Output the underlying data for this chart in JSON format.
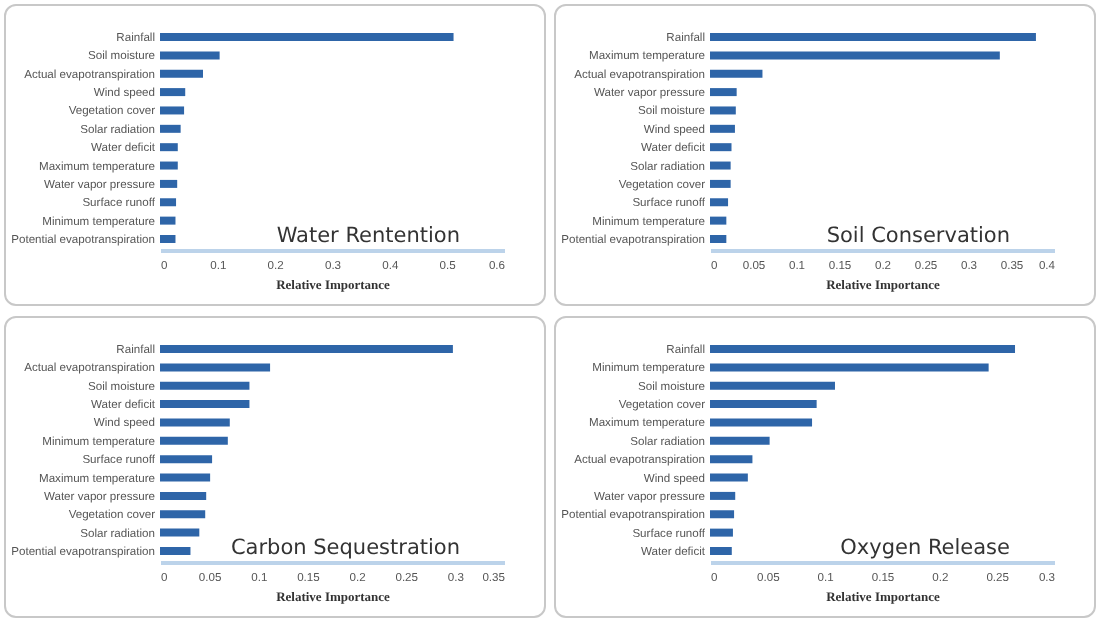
{
  "chart_data": [
    {
      "type": "bar",
      "orientation": "horizontal",
      "title": "Water Rentention",
      "xlabel": "Relative Importance",
      "categories": [
        "Rainfall",
        "Soil moisture",
        "Actual evapotranspiration",
        "Wind speed",
        "Vegetation cover",
        "Solar radiation",
        "Water deficit",
        "Maximum temperature",
        "Water vapor pressure",
        "Surface runoff",
        "Minimum temperature",
        "Potential evapotranspiration"
      ],
      "values": [
        0.512,
        0.104,
        0.075,
        0.044,
        0.042,
        0.036,
        0.031,
        0.031,
        0.03,
        0.028,
        0.027,
        0.027
      ],
      "color": "#2e65a8",
      "xlim": [
        0,
        0.6
      ],
      "xticks": [
        0,
        0.1,
        0.2,
        0.3,
        0.4,
        0.5,
        0.6
      ],
      "grid": false
    },
    {
      "type": "bar",
      "orientation": "horizontal",
      "title": "Soil Conservation",
      "xlabel": "Relative Importance",
      "categories": [
        "Rainfall",
        "Maximum temperature",
        "Actual evapotranspiration",
        "Water vapor pressure",
        "Soil moisture",
        "Wind speed",
        "Water deficit",
        "Solar radiation",
        "Vegetation cover",
        "Surface runoff",
        "Minimum temperature",
        "Potential evapotranspiration"
      ],
      "values": [
        0.379,
        0.337,
        0.061,
        0.031,
        0.03,
        0.029,
        0.025,
        0.024,
        0.024,
        0.021,
        0.019,
        0.019
      ],
      "color": "#2e65a8",
      "xlim": [
        0,
        0.4
      ],
      "xticks": [
        0,
        0.05,
        0.1,
        0.15,
        0.2,
        0.25,
        0.3,
        0.35,
        0.4
      ],
      "grid": false
    },
    {
      "type": "bar",
      "orientation": "horizontal",
      "title": "Carbon Sequestration",
      "xlabel": "Relative Importance",
      "categories": [
        "Rainfall",
        "Actual evapotranspiration",
        "Soil moisture",
        "Water deficit",
        "Wind speed",
        "Minimum temperature",
        "Surface runoff",
        "Maximum temperature",
        "Water vapor pressure",
        "Vegetation cover",
        "Solar radiation",
        "Potential evapotranspiration"
      ],
      "values": [
        0.298,
        0.112,
        0.091,
        0.091,
        0.071,
        0.069,
        0.053,
        0.051,
        0.047,
        0.046,
        0.04,
        0.031
      ],
      "color": "#2e65a8",
      "xlim": [
        0,
        0.35
      ],
      "xticks": [
        0,
        0.05,
        0.1,
        0.15,
        0.2,
        0.25,
        0.3,
        0.35
      ],
      "grid": false
    },
    {
      "type": "bar",
      "orientation": "horizontal",
      "title": "Oxygen Release",
      "xlabel": "Relative Importance",
      "categories": [
        "Rainfall",
        "Minimum temperature",
        "Soil moisture",
        "Vegetation cover",
        "Maximum temperature",
        "Solar radiation",
        "Actual evapotranspiration",
        "Wind speed",
        "Water vapor pressure",
        "Potential evapotranspiration",
        "Surface runoff",
        "Water deficit"
      ],
      "values": [
        0.266,
        0.243,
        0.109,
        0.093,
        0.089,
        0.052,
        0.037,
        0.033,
        0.022,
        0.021,
        0.02,
        0.019
      ],
      "color": "#2e65a8",
      "xlim": [
        0,
        0.3
      ],
      "xticks": [
        0,
        0.05,
        0.1,
        0.15,
        0.2,
        0.25,
        0.3
      ],
      "grid": false
    }
  ]
}
